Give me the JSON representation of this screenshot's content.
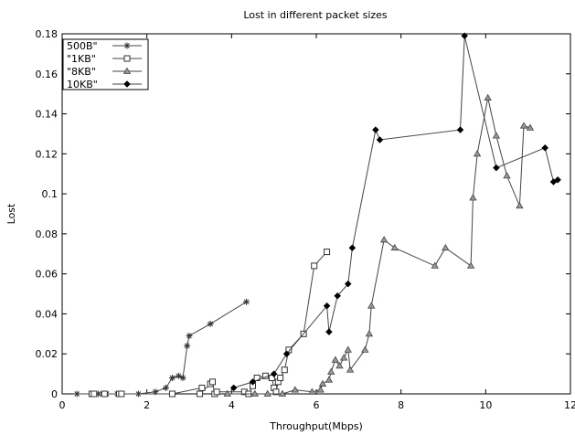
{
  "chart_data": {
    "type": "line",
    "title": "Lost in different packet sizes",
    "xlabel": "Throughput(Mbps)",
    "ylabel": "Lost",
    "xlim": [
      0,
      12
    ],
    "ylim": [
      0,
      0.18
    ],
    "xticks": [
      0,
      2,
      4,
      6,
      8,
      10,
      12
    ],
    "yticks": [
      0,
      0.02,
      0.04,
      0.06,
      0.08,
      0.1,
      0.12,
      0.14,
      0.16,
      0.18
    ],
    "ytick_labels": [
      "0",
      "0.02",
      "0.04",
      "0.06",
      "0.08",
      "0.1",
      "0.12",
      "0.14",
      "0.16",
      "0.18"
    ],
    "grid": false,
    "legend_position": "top-left",
    "series": [
      {
        "name": "500B\"",
        "marker": "star",
        "points": [
          [
            0.35,
            0
          ],
          [
            0.7,
            0
          ],
          [
            0.85,
            0
          ],
          [
            0.95,
            0
          ],
          [
            1.05,
            0
          ],
          [
            1.3,
            0
          ],
          [
            1.8,
            0
          ],
          [
            2.2,
            0.001
          ],
          [
            2.45,
            0.003
          ],
          [
            2.6,
            0.008
          ],
          [
            2.75,
            0.009
          ],
          [
            2.85,
            0.008
          ],
          [
            2.95,
            0.024
          ],
          [
            3.0,
            0.029
          ],
          [
            3.5,
            0.035
          ],
          [
            4.35,
            0.046
          ]
        ]
      },
      {
        "name": "\"1KB\"",
        "marker": "square",
        "points": [
          [
            0.7,
            0
          ],
          [
            0.75,
            0
          ],
          [
            1.0,
            0
          ],
          [
            1.35,
            0
          ],
          [
            1.4,
            0
          ],
          [
            2.6,
            0
          ],
          [
            3.3,
            0.003
          ],
          [
            3.25,
            0
          ],
          [
            3.5,
            0.005
          ],
          [
            3.55,
            0.006
          ],
          [
            3.6,
            0
          ],
          [
            3.65,
            0.001
          ],
          [
            4.3,
            0.001
          ],
          [
            4.4,
            0
          ],
          [
            4.5,
            0.004
          ],
          [
            4.6,
            0.008
          ],
          [
            4.8,
            0.009
          ],
          [
            4.95,
            0.008
          ],
          [
            5.0,
            0.003
          ],
          [
            5.05,
            0.001
          ],
          [
            5.1,
            0.006
          ],
          [
            5.15,
            0.008
          ],
          [
            5.25,
            0.012
          ],
          [
            5.35,
            0.022
          ],
          [
            5.7,
            0.03
          ],
          [
            5.95,
            0.064
          ],
          [
            6.25,
            0.071
          ]
        ]
      },
      {
        "name": "\"8KB\"",
        "marker": "triangle",
        "points": [
          [
            3.9,
            0
          ],
          [
            4.55,
            0
          ],
          [
            4.85,
            0
          ],
          [
            5.2,
            0
          ],
          [
            5.5,
            0.002
          ],
          [
            5.9,
            0.001
          ],
          [
            6.1,
            0.002
          ],
          [
            6.15,
            0.005
          ],
          [
            6.3,
            0.007
          ],
          [
            6.35,
            0.011
          ],
          [
            6.45,
            0.017
          ],
          [
            6.55,
            0.014
          ],
          [
            6.65,
            0.018
          ],
          [
            6.75,
            0.022
          ],
          [
            6.8,
            0.012
          ],
          [
            7.15,
            0.022
          ],
          [
            7.25,
            0.03
          ],
          [
            7.3,
            0.044
          ],
          [
            7.6,
            0.077
          ],
          [
            7.85,
            0.073
          ],
          [
            8.8,
            0.064
          ],
          [
            9.05,
            0.073
          ],
          [
            9.65,
            0.064
          ],
          [
            9.7,
            0.098
          ],
          [
            9.8,
            0.12
          ],
          [
            10.05,
            0.148
          ],
          [
            10.25,
            0.129
          ],
          [
            10.5,
            0.109
          ],
          [
            10.8,
            0.094
          ],
          [
            10.9,
            0.134
          ],
          [
            11.05,
            0.133
          ]
        ]
      },
      {
        "name": "10KB\"",
        "marker": "diamond",
        "points": [
          [
            4.05,
            0.003
          ],
          [
            4.5,
            0.006
          ],
          [
            5.0,
            0.01
          ],
          [
            5.3,
            0.02
          ],
          [
            6.25,
            0.044
          ],
          [
            6.3,
            0.031
          ],
          [
            6.5,
            0.049
          ],
          [
            6.75,
            0.055
          ],
          [
            6.85,
            0.073
          ],
          [
            7.4,
            0.132
          ],
          [
            7.5,
            0.127
          ],
          [
            9.4,
            0.132
          ],
          [
            9.5,
            0.179
          ],
          [
            10.25,
            0.113
          ],
          [
            11.4,
            0.123
          ],
          [
            11.6,
            0.106
          ],
          [
            11.7,
            0.107
          ]
        ]
      }
    ]
  }
}
